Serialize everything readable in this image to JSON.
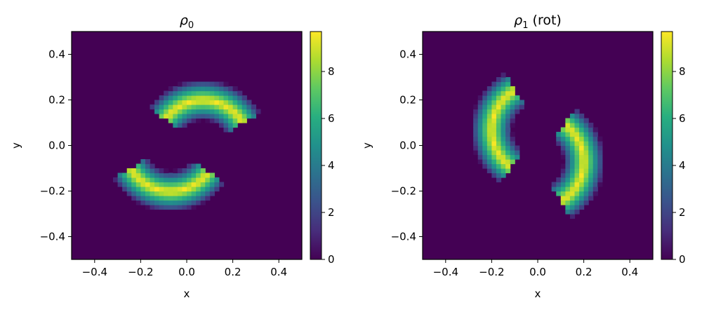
{
  "chart_data": [
    {
      "type": "heatmap",
      "title_symbol": "ρ",
      "title_subscript": "0",
      "title_suffix": "",
      "xlabel": "x",
      "ylabel": "y",
      "xlim": [
        -0.5,
        0.5
      ],
      "ylim": [
        -0.5,
        0.5
      ],
      "x_ticks": [
        -0.4,
        -0.2,
        0.0,
        0.2,
        0.4
      ],
      "y_ticks": [
        -0.4,
        -0.2,
        0.0,
        0.2,
        0.4
      ],
      "x_tick_labels": [
        "−0.4",
        "−0.2",
        "0.0",
        "0.2",
        "0.4"
      ],
      "y_tick_labels": [
        "−0.4",
        "−0.2",
        "0.0",
        "0.2",
        "0.4"
      ],
      "colorbar": {
        "min": 0,
        "max": 9.7,
        "ticks": [
          0,
          2,
          4,
          6,
          8
        ],
        "tick_labels": [
          "0",
          "2",
          "4",
          "6",
          "8"
        ],
        "colormap": "viridis"
      },
      "grid_resolution": 50,
      "background_value": 0,
      "shapes": [
        {
          "kind": "arc",
          "center": [
            0.07,
            0.0
          ],
          "radius": 0.2,
          "ring_half_width": 0.09,
          "angle_start_deg": 30,
          "angle_end_deg": 145,
          "peak": 9.7
        },
        {
          "kind": "arc",
          "center": [
            -0.07,
            0.0
          ],
          "radius": 0.2,
          "ring_half_width": 0.09,
          "angle_start_deg": 210,
          "angle_end_deg": 325,
          "peak": 9.7
        }
      ]
    },
    {
      "type": "heatmap",
      "title_symbol": "ρ",
      "title_subscript": "1",
      "title_suffix": " (rot)",
      "xlabel": "x",
      "ylabel": "y",
      "xlim": [
        -0.5,
        0.5
      ],
      "ylim": [
        -0.5,
        0.5
      ],
      "x_ticks": [
        -0.4,
        -0.2,
        0.0,
        0.2,
        0.4
      ],
      "y_ticks": [
        -0.4,
        -0.2,
        0.0,
        0.2,
        0.4
      ],
      "x_tick_labels": [
        "−0.4",
        "−0.2",
        "0.0",
        "0.2",
        "0.4"
      ],
      "y_tick_labels": [
        "−0.4",
        "−0.2",
        "0.0",
        "0.2",
        "0.4"
      ],
      "colorbar": {
        "min": 0,
        "max": 9.7,
        "ticks": [
          0,
          2,
          4,
          6,
          8
        ],
        "tick_labels": [
          "0",
          "2",
          "4",
          "6",
          "8"
        ],
        "colormap": "viridis"
      },
      "grid_resolution": 50,
      "background_value": 0,
      "shapes": [
        {
          "kind": "arc",
          "center": [
            0.0,
            0.07
          ],
          "radius": 0.2,
          "ring_half_width": 0.09,
          "angle_start_deg": 120,
          "angle_end_deg": 235,
          "peak": 9.7
        },
        {
          "kind": "arc",
          "center": [
            0.0,
            -0.07
          ],
          "radius": 0.2,
          "ring_half_width": 0.09,
          "angle_start_deg": 300,
          "angle_end_deg": 415,
          "peak": 9.7
        }
      ]
    }
  ]
}
